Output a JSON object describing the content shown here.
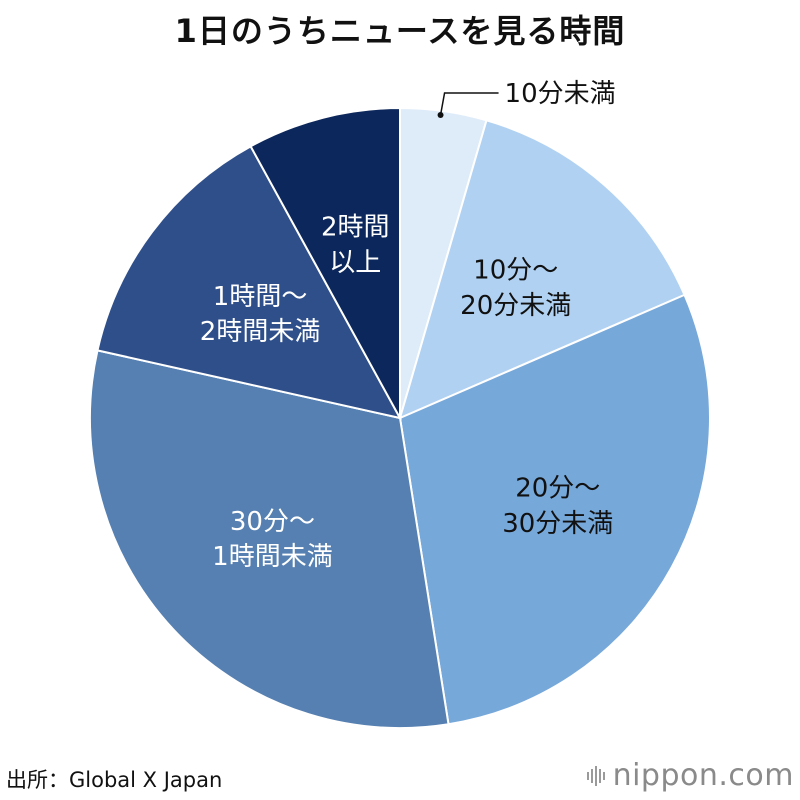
{
  "title": "1日のうちニュースを見る時間",
  "source": "出所：Global X Japan",
  "brand": "nippon.com",
  "chart_data": {
    "type": "pie",
    "title": "1日のうちニュースを見る時間",
    "start_angle_deg": 0,
    "direction": "clockwise",
    "slices": [
      {
        "label": "10分未満",
        "lines": [
          "10分未満"
        ],
        "value": 4.5,
        "color": "#deebf8",
        "text_color": "#111111",
        "callout": true
      },
      {
        "label": "10分～20分未満",
        "lines": [
          "10分～",
          "20分未満"
        ],
        "value": 14.0,
        "color": "#b0d1f2",
        "text_color": "#111111"
      },
      {
        "label": "20分～30分未満",
        "lines": [
          "20分～",
          "30分未満"
        ],
        "value": 29.0,
        "color": "#77a8da",
        "text_color": "#111111"
      },
      {
        "label": "30分～1時間未満",
        "lines": [
          "30分～",
          "1時間未満"
        ],
        "value": 31.0,
        "color": "#5680b1",
        "text_color": "#ffffff"
      },
      {
        "label": "1時間～2時間未満",
        "lines": [
          "1時間～",
          "2時間未満"
        ],
        "value": 13.5,
        "color": "#2f4f8b",
        "text_color": "#ffffff"
      },
      {
        "label": "2時間以上",
        "lines": [
          "2時間",
          "以上"
        ],
        "value": 8.0,
        "color": "#0c275b",
        "text_color": "#ffffff"
      }
    ]
  }
}
